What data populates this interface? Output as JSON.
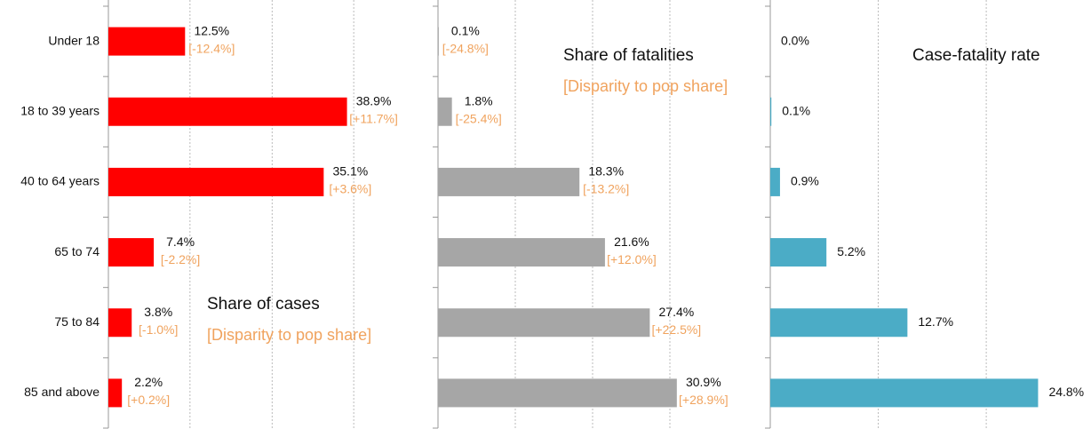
{
  "chart_data": [
    {
      "type": "bar",
      "orientation": "horizontal",
      "color": "#ff0000",
      "title": "Share of cases",
      "subtitle": "[Disparity to pop share]",
      "categories": [
        "Under 18",
        "18 to 39 years",
        "40 to 64 years",
        "65 to 74",
        "75 to 84",
        "85 and above"
      ],
      "values": [
        12.5,
        38.9,
        35.1,
        7.4,
        3.8,
        2.2
      ],
      "value_labels": [
        "12.5%",
        "38.9%",
        "35.1%",
        "7.4%",
        "3.8%",
        "2.2%"
      ],
      "disparity_labels": [
        "[-12.4%]",
        "[+11.7%]",
        "[+3.6%]",
        "[-2.2%]",
        "[-1.0%]",
        "[+0.2%]"
      ],
      "xlim": [
        0,
        53.3
      ],
      "xticks": [
        13.3,
        26.7,
        40
      ],
      "grid": true
    },
    {
      "type": "bar",
      "orientation": "horizontal",
      "color": "#a6a6a6",
      "title": "Share of fatalities",
      "subtitle": "[Disparity to pop share]",
      "values": [
        0.1,
        1.8,
        18.3,
        21.6,
        27.4,
        30.9
      ],
      "value_labels": [
        "0.1%",
        "1.8%",
        "18.3%",
        "21.6%",
        "27.4%",
        "30.9%"
      ],
      "disparity_labels": [
        "[-24.8%]",
        "[-25.4%]",
        "[-13.2%]",
        "[+12.0%]",
        "[+22.5%]",
        "[+28.9%]"
      ],
      "xlim": [
        0,
        40
      ],
      "xticks": [
        10,
        20,
        30
      ],
      "grid": true
    },
    {
      "type": "bar",
      "orientation": "horizontal",
      "color": "#4bacc6",
      "title": "Case-fatality rate",
      "values": [
        0.0,
        0.1,
        0.9,
        5.2,
        12.7,
        24.8
      ],
      "value_labels": [
        "0.0%",
        "0.1%",
        "0.9%",
        "5.2%",
        "12.7%",
        "24.8%"
      ],
      "xlim": [
        0,
        29.7
      ],
      "xticks": [
        10,
        20
      ],
      "grid": true
    }
  ]
}
